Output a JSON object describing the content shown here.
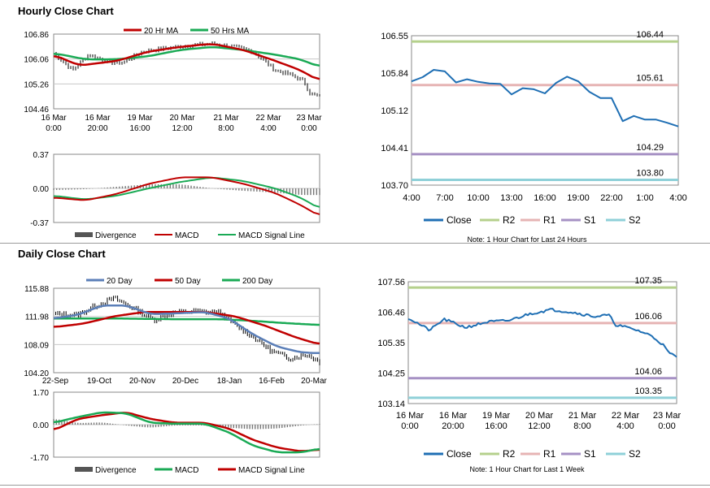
{
  "hourly": {
    "title": "Hourly Close Chart",
    "price_chart": {
      "type": "line",
      "legend": [
        {
          "name": "20 Hr MA",
          "color": "#c00000"
        },
        {
          "name": "50 Hrs MA",
          "color": "#1aaa55"
        }
      ],
      "y_ticks": [
        "106.86",
        "106.06",
        "105.26",
        "104.46"
      ],
      "ylim": [
        104.46,
        106.86
      ],
      "x_ticks": [
        [
          "16 Mar",
          "0:00"
        ],
        [
          "16 Mar",
          "20:00"
        ],
        [
          "19 Mar",
          "16:00"
        ],
        [
          "20 Mar",
          "12:00"
        ],
        [
          "21 Mar",
          "8:00"
        ],
        [
          "22 Mar",
          "4:00"
        ],
        [
          "23 Mar",
          "0:00"
        ]
      ],
      "price_ctrl": [
        [
          0,
          106.25
        ],
        [
          6,
          105.7
        ],
        [
          11,
          106.2
        ],
        [
          18,
          105.95
        ],
        [
          22,
          105.95
        ],
        [
          28,
          106.3
        ],
        [
          35,
          106.4
        ],
        [
          43,
          106.5
        ],
        [
          50,
          106.55
        ],
        [
          57,
          106.45
        ],
        [
          63,
          106.3
        ],
        [
          70,
          105.7
        ],
        [
          75,
          105.55
        ],
        [
          79,
          105.35
        ],
        [
          81,
          104.95
        ],
        [
          84,
          104.85
        ]
      ],
      "ma20_ctrl": [
        [
          0,
          106.2
        ],
        [
          8,
          105.85
        ],
        [
          20,
          106.0
        ],
        [
          30,
          106.3
        ],
        [
          40,
          106.45
        ],
        [
          50,
          106.55
        ],
        [
          60,
          106.35
        ],
        [
          70,
          106.0
        ],
        [
          78,
          105.7
        ],
        [
          84,
          105.35
        ]
      ],
      "ma50_ctrl": [
        [
          0,
          106.25
        ],
        [
          10,
          106.05
        ],
        [
          20,
          106.05
        ],
        [
          30,
          106.15
        ],
        [
          40,
          106.35
        ],
        [
          50,
          106.45
        ],
        [
          60,
          106.35
        ],
        [
          70,
          106.2
        ],
        [
          78,
          106.05
        ],
        [
          84,
          105.8
        ]
      ]
    },
    "macd_chart": {
      "y_ticks": [
        "0.37",
        "0.00",
        "-0.37"
      ],
      "ylim": [
        -0.37,
        0.37
      ],
      "legend": [
        {
          "name": "Divergence",
          "color": "#555555"
        },
        {
          "name": "MACD",
          "color": "#c00000"
        },
        {
          "name": "MACD Signal Line",
          "color": "#1aaa55"
        }
      ],
      "macd_ctrl": [
        [
          0,
          -0.1
        ],
        [
          10,
          -0.13
        ],
        [
          20,
          -0.06
        ],
        [
          30,
          0.05
        ],
        [
          40,
          0.12
        ],
        [
          50,
          0.12
        ],
        [
          60,
          0.05
        ],
        [
          70,
          -0.05
        ],
        [
          78,
          -0.18
        ],
        [
          84,
          -0.3
        ]
      ],
      "signal_ctrl": [
        [
          0,
          -0.08
        ],
        [
          10,
          -0.12
        ],
        [
          20,
          -0.08
        ],
        [
          30,
          0.0
        ],
        [
          40,
          0.07
        ],
        [
          50,
          0.12
        ],
        [
          60,
          0.08
        ],
        [
          70,
          0.0
        ],
        [
          78,
          -0.1
        ],
        [
          84,
          -0.22
        ]
      ]
    },
    "pivot_chart": {
      "type": "line",
      "y_ticks": [
        "106.55",
        "105.84",
        "105.12",
        "104.41",
        "103.70"
      ],
      "ylim": [
        103.7,
        106.55
      ],
      "x_ticks": [
        "4:00",
        "7:00",
        "10:00",
        "13:00",
        "16:00",
        "19:00",
        "22:00",
        "1:00",
        "4:00"
      ],
      "close": [
        105.68,
        105.76,
        105.9,
        105.87,
        105.66,
        105.72,
        105.67,
        105.64,
        105.63,
        105.43,
        105.55,
        105.53,
        105.45,
        105.65,
        105.77,
        105.68,
        105.48,
        105.36,
        105.36,
        104.92,
        105.02,
        104.95,
        104.95,
        104.89,
        104.82
      ],
      "levels": [
        {
          "name": "R2",
          "value": 106.44,
          "label": "106.44",
          "color": "#b5d08c"
        },
        {
          "name": "R1",
          "value": 105.61,
          "label": "105.61",
          "color": "#e6b4b4"
        },
        {
          "name": "S1",
          "value": 104.29,
          "label": "104.29",
          "color": "#a691c4"
        },
        {
          "name": "S2",
          "value": 103.8,
          "label": "103.80",
          "color": "#8fd0d8"
        }
      ],
      "legend": [
        {
          "name": "Close",
          "color": "#1f6fb4"
        },
        {
          "name": "R2",
          "color": "#b5d08c"
        },
        {
          "name": "R1",
          "color": "#e6b4b4"
        },
        {
          "name": "S1",
          "color": "#a691c4"
        },
        {
          "name": "S2",
          "color": "#8fd0d8"
        }
      ],
      "note": "Note: 1 Hour Chart for Last 24 Hours"
    }
  },
  "daily": {
    "title": "Daily Close Chart",
    "price_chart": {
      "type": "line",
      "legend": [
        {
          "name": "20 Day",
          "color": "#5b7fb8"
        },
        {
          "name": "50 Day",
          "color": "#c00000"
        },
        {
          "name": "200 Day",
          "color": "#1aaa55"
        }
      ],
      "y_ticks": [
        "115.88",
        "111.98",
        "108.09",
        "104.20"
      ],
      "ylim": [
        104.2,
        115.88
      ],
      "x_ticks": [
        "22-Sep",
        "19-Oct",
        "20-Nov",
        "20-Dec",
        "18-Jan",
        "16-Feb",
        "20-Mar"
      ],
      "price_ctrl": [
        [
          0,
          112.3
        ],
        [
          8,
          112.2
        ],
        [
          14,
          113.5
        ],
        [
          20,
          114.5
        ],
        [
          27,
          113.0
        ],
        [
          33,
          111.5
        ],
        [
          40,
          112.5
        ],
        [
          47,
          112.7
        ],
        [
          55,
          112.5
        ],
        [
          60,
          110.8
        ],
        [
          66,
          109.2
        ],
        [
          72,
          107.2
        ],
        [
          78,
          106.2
        ],
        [
          84,
          106.7
        ],
        [
          88,
          105.7
        ]
      ],
      "ma20_ctrl": [
        [
          0,
          111.7
        ],
        [
          8,
          112.2
        ],
        [
          16,
          113.5
        ],
        [
          24,
          113.5
        ],
        [
          32,
          112.3
        ],
        [
          40,
          112.4
        ],
        [
          50,
          112.6
        ],
        [
          58,
          111.7
        ],
        [
          66,
          109.5
        ],
        [
          74,
          107.8
        ],
        [
          82,
          107.0
        ],
        [
          88,
          106.9
        ]
      ],
      "ma50_ctrl": [
        [
          0,
          110.5
        ],
        [
          10,
          111.0
        ],
        [
          20,
          112.0
        ],
        [
          30,
          112.6
        ],
        [
          40,
          112.6
        ],
        [
          50,
          112.6
        ],
        [
          60,
          112.0
        ],
        [
          70,
          110.7
        ],
        [
          80,
          109.1
        ],
        [
          88,
          108.1
        ]
      ],
      "ma200_ctrl": [
        [
          0,
          111.7
        ],
        [
          20,
          111.7
        ],
        [
          40,
          111.6
        ],
        [
          55,
          111.6
        ],
        [
          65,
          111.4
        ],
        [
          75,
          111.1
        ],
        [
          88,
          110.8
        ]
      ]
    },
    "macd_chart": {
      "y_ticks": [
        "1.70",
        "0.00",
        "-1.70"
      ],
      "ylim": [
        -1.7,
        1.7
      ],
      "legend": [
        {
          "name": "Divergence",
          "color": "#555555"
        },
        {
          "name": "MACD",
          "color": "#1aaa55"
        },
        {
          "name": "MACD Signal Line",
          "color": "#c00000"
        }
      ],
      "macd_ctrl": [
        [
          0,
          0.1
        ],
        [
          8,
          0.4
        ],
        [
          16,
          0.65
        ],
        [
          24,
          0.6
        ],
        [
          32,
          0.1
        ],
        [
          40,
          0.05
        ],
        [
          50,
          0.05
        ],
        [
          58,
          -0.4
        ],
        [
          66,
          -1.1
        ],
        [
          74,
          -1.45
        ],
        [
          82,
          -1.45
        ],
        [
          88,
          -1.25
        ]
      ],
      "signal_ctrl": [
        [
          0,
          -0.3
        ],
        [
          8,
          0.3
        ],
        [
          16,
          0.5
        ],
        [
          24,
          0.65
        ],
        [
          32,
          0.3
        ],
        [
          40,
          0.1
        ],
        [
          50,
          0.1
        ],
        [
          58,
          -0.2
        ],
        [
          66,
          -0.8
        ],
        [
          74,
          -1.2
        ],
        [
          82,
          -1.4
        ],
        [
          88,
          -1.3
        ]
      ]
    },
    "pivot_chart": {
      "type": "line",
      "y_ticks": [
        "107.56",
        "106.46",
        "105.35",
        "104.25",
        "103.14"
      ],
      "ylim": [
        103.14,
        107.56
      ],
      "x_ticks": [
        [
          "16 Mar",
          "0:00"
        ],
        [
          "16 Mar",
          "20:00"
        ],
        [
          "19 Mar",
          "16:00"
        ],
        [
          "20 Mar",
          "12:00"
        ],
        [
          "21 Mar",
          "8:00"
        ],
        [
          "22 Mar",
          "4:00"
        ],
        [
          "23 Mar",
          "0:00"
        ]
      ],
      "close_ctrl": [
        [
          0,
          106.25
        ],
        [
          6,
          105.8
        ],
        [
          10,
          106.2
        ],
        [
          16,
          105.9
        ],
        [
          22,
          106.1
        ],
        [
          28,
          106.15
        ],
        [
          34,
          106.4
        ],
        [
          40,
          106.55
        ],
        [
          46,
          106.45
        ],
        [
          52,
          106.3
        ],
        [
          56,
          106.35
        ],
        [
          58,
          106.0
        ],
        [
          64,
          105.8
        ],
        [
          68,
          105.6
        ],
        [
          71,
          105.3
        ],
        [
          73,
          104.95
        ],
        [
          75,
          104.85
        ]
      ],
      "levels": [
        {
          "name": "R2",
          "value": 107.35,
          "label": "107.35",
          "color": "#b5d08c"
        },
        {
          "name": "R1",
          "value": 106.06,
          "label": "106.06",
          "color": "#e6b4b4"
        },
        {
          "name": "S1",
          "value": 104.06,
          "label": "104.06",
          "color": "#a691c4"
        },
        {
          "name": "S2",
          "value": 103.35,
          "label": "103.35",
          "color": "#8fd0d8"
        }
      ],
      "legend": [
        {
          "name": "Close",
          "color": "#1f6fb4"
        },
        {
          "name": "R2",
          "color": "#b5d08c"
        },
        {
          "name": "R1",
          "color": "#e6b4b4"
        },
        {
          "name": "S1",
          "color": "#a691c4"
        },
        {
          "name": "S2",
          "color": "#8fd0d8"
        }
      ],
      "note": "Note: 1 Hour Chart for Last 1 Week"
    }
  }
}
